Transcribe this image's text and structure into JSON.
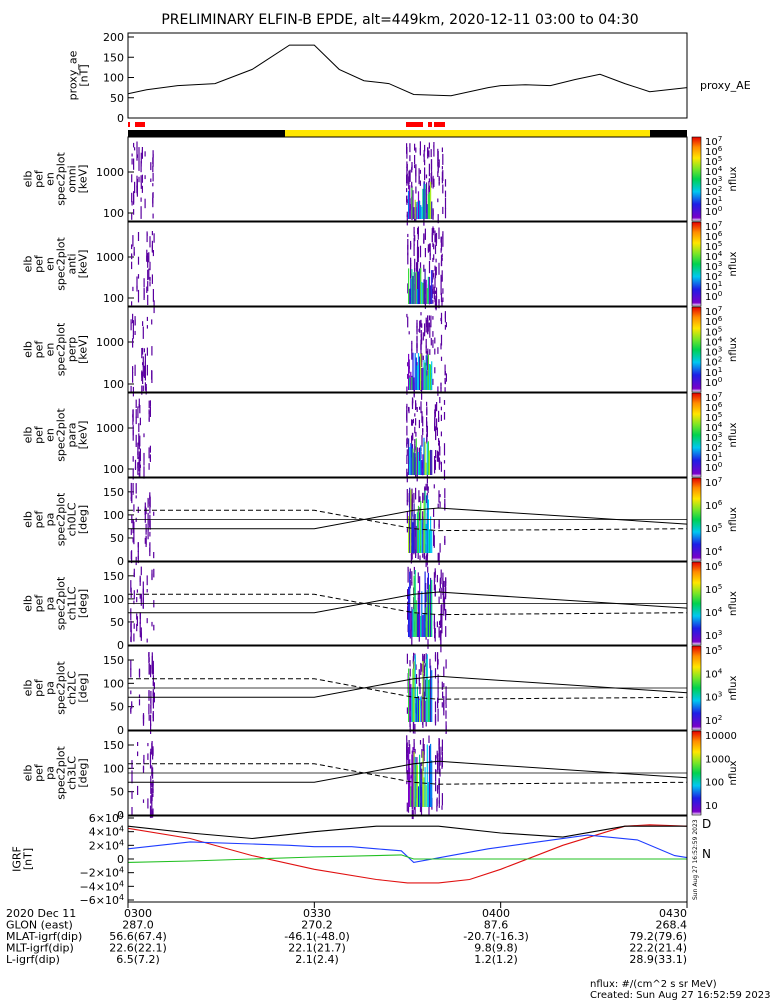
{
  "title": "PRELIMINARY ELFIN-B EPDE, alt=449km, 2020-12-11 03:00 to 04:30",
  "colors": {
    "night_bar": "#000000",
    "day_bar": "#ffe600",
    "science_marks": "#ff0000",
    "bx": "#1e3cff",
    "by": "#22c022",
    "bz": "#e01010",
    "bt": "#000000"
  },
  "chart_data": [
    {
      "type": "line",
      "panel": "proxy_ae",
      "ylabel": [
        "proxy_ae",
        "[nT]"
      ],
      "series_label": "proxy_AE",
      "yticks": [
        "200",
        "150",
        "100",
        "50",
        "0"
      ],
      "ylim": [
        0,
        200
      ],
      "x_minutes": [
        0,
        3,
        8,
        14,
        20,
        26,
        30,
        34,
        38,
        42,
        46,
        52,
        58,
        60,
        64,
        68,
        72,
        76,
        80,
        84,
        90
      ],
      "values": [
        60,
        70,
        80,
        85,
        120,
        180,
        180,
        120,
        92,
        85,
        58,
        55,
        75,
        80,
        82,
        80,
        95,
        108,
        85,
        65,
        75
      ]
    },
    {
      "type": "heatmap",
      "panel": "elb_pef_en_spec2plot_omni",
      "ylabel": [
        "elb",
        "pef",
        "en",
        "spec2plot",
        "omni",
        "[keV]"
      ],
      "yticks": [
        "1000",
        "100"
      ],
      "colorbar_label": "nflux",
      "colorbar_ticks": [
        "10^7",
        "10^6",
        "10^5",
        "10^4",
        "10^3",
        "10^2",
        "10^1",
        "10^0"
      ]
    },
    {
      "type": "heatmap",
      "panel": "elb_pef_en_spec2plot_anti",
      "ylabel": [
        "elb",
        "pef",
        "en",
        "spec2plot",
        "anti",
        "[keV]"
      ],
      "yticks": [
        "1000",
        "100"
      ],
      "colorbar_label": "nflux",
      "colorbar_ticks": [
        "10^7",
        "10^6",
        "10^5",
        "10^4",
        "10^3",
        "10^2",
        "10^1",
        "10^0"
      ]
    },
    {
      "type": "heatmap",
      "panel": "elb_pef_en_spec2plot_perp",
      "ylabel": [
        "elb",
        "pef",
        "en",
        "spec2plot",
        "perp",
        "[keV]"
      ],
      "yticks": [
        "1000",
        "100"
      ],
      "colorbar_label": "nflux",
      "colorbar_ticks": [
        "10^7",
        "10^6",
        "10^5",
        "10^4",
        "10^3",
        "10^2",
        "10^1",
        "10^0"
      ]
    },
    {
      "type": "heatmap",
      "panel": "elb_pef_en_spec2plot_para",
      "ylabel": [
        "elb",
        "pef",
        "en",
        "spec2plot",
        "para",
        "[keV]"
      ],
      "yticks": [
        "1000",
        "100"
      ],
      "colorbar_label": "nflux",
      "colorbar_ticks": [
        "10^7",
        "10^6",
        "10^5",
        "10^4",
        "10^3",
        "10^2",
        "10^1",
        "10^0"
      ]
    },
    {
      "type": "heatmap",
      "panel": "elb_pef_pa_spec2plot_ch0LC",
      "ylabel": [
        "elb",
        "pef",
        "pa",
        "spec2plot",
        "ch0LC",
        "[deg]"
      ],
      "yticks": [
        "150",
        "100",
        "50",
        "0"
      ],
      "ylim": [
        0,
        180
      ],
      "colorbar_label": "nflux",
      "colorbar_ticks": [
        "10^7",
        "10^6",
        "10^5",
        "10^4"
      ]
    },
    {
      "type": "heatmap",
      "panel": "elb_pef_pa_spec2plot_ch1LC",
      "ylabel": [
        "elb",
        "pef",
        "pa",
        "spec2plot",
        "ch1LC",
        "[deg]"
      ],
      "yticks": [
        "150",
        "100",
        "50",
        "0"
      ],
      "ylim": [
        0,
        180
      ],
      "colorbar_label": "nflux",
      "colorbar_ticks": [
        "10^6",
        "10^5",
        "10^4",
        "10^3"
      ]
    },
    {
      "type": "heatmap",
      "panel": "elb_pef_pa_spec2plot_ch2LC",
      "ylabel": [
        "elb",
        "pef",
        "pa",
        "spec2plot",
        "ch2LC",
        "[deg]"
      ],
      "yticks": [
        "150",
        "100",
        "50",
        "0"
      ],
      "ylim": [
        0,
        180
      ],
      "colorbar_label": "nflux",
      "colorbar_ticks": [
        "10^5",
        "10^4",
        "10^3",
        "10^2"
      ]
    },
    {
      "type": "heatmap",
      "panel": "elb_pef_pa_spec2plot_ch3LC",
      "ylabel": [
        "elb",
        "pef",
        "pa",
        "spec2plot",
        "ch3LC",
        "[deg]"
      ],
      "yticks": [
        "150",
        "100",
        "50",
        "0"
      ],
      "ylim": [
        0,
        180
      ],
      "colorbar_label": "nflux",
      "colorbar_ticks": [
        "10000",
        "1000",
        "100",
        "10"
      ]
    },
    {
      "type": "line",
      "panel": "IGRF",
      "ylabel": [
        "IGRF",
        "[nT]"
      ],
      "yticks": [
        "6×10^4",
        "4×10^4",
        "2×10^4",
        "0",
        "−2×10^4",
        "−4×10^4",
        "−6×10^4"
      ],
      "ylim": [
        -60000,
        60000
      ],
      "legend": [
        "D",
        "N"
      ],
      "series": [
        {
          "name": "D",
          "x_minutes": [
            0,
            10,
            20,
            30,
            40,
            45,
            50,
            55,
            60,
            70,
            80,
            84,
            90
          ],
          "values": [
            45000,
            30000,
            5000,
            -15000,
            -30000,
            -35000,
            -35000,
            -30000,
            -15000,
            20000,
            48000,
            50000,
            48000
          ]
        },
        {
          "name": "N",
          "x_minutes": [
            0,
            10,
            20,
            26,
            30,
            36,
            40,
            44,
            46,
            52,
            58,
            66,
            74,
            82,
            88,
            90
          ],
          "values": [
            15000,
            25000,
            22000,
            20000,
            18000,
            18000,
            15000,
            12000,
            -5000,
            5000,
            15000,
            25000,
            35000,
            28000,
            5000,
            2000
          ]
        },
        {
          "x_minutes": [
            0,
            10,
            20,
            30,
            40,
            44,
            46,
            50,
            60,
            70,
            80,
            90
          ],
          "values": [
            -5000,
            -3000,
            0,
            3000,
            5000,
            6000,
            0,
            0,
            0,
            0,
            0,
            0
          ]
        },
        {
          "x_minutes": [
            0,
            10,
            20,
            30,
            40,
            50,
            60,
            70,
            80,
            90
          ],
          "values": [
            48000,
            38000,
            30000,
            40000,
            48000,
            48000,
            38000,
            32000,
            48000,
            48000
          ]
        }
      ]
    }
  ],
  "ticks": {
    "rows": [
      {
        "label": "2020 Dec 11",
        "values": [
          "0300",
          "0330",
          "0400",
          "0430"
        ]
      },
      {
        "label": "GLON (east)",
        "values": [
          "287.0",
          "270.2",
          "87.6",
          "268.4"
        ]
      },
      {
        "label": "MLAT-igrf(dip)",
        "values": [
          "56.6(67.4)",
          "-46.1(-48.0)",
          "-20.7(-16.3)",
          "79.2(79.6)"
        ]
      },
      {
        "label": "MLT-igrf(dip)",
        "values": [
          "22.6(22.1)",
          "22.1(21.7)",
          "9.8(9.8)",
          "22.2(21.4)"
        ]
      },
      {
        "label": "L-igrf(dip)",
        "values": [
          "6.5(7.2)",
          "2.1(2.4)",
          "1.2(1.2)",
          "28.9(33.1)"
        ]
      }
    ]
  },
  "footer": {
    "units": "nflux: #/(cm^2 s sr MeV)",
    "created": "Created: Sun Aug 27 16:52:59 2023",
    "side_stamp": "Sun Aug 27 16:52:59 2023"
  }
}
